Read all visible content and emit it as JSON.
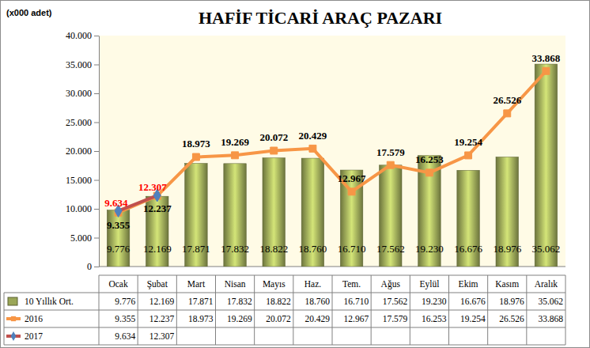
{
  "chart_data": {
    "type": "bar",
    "title": "HAFİF TİCARİ ARAÇ PAZARI",
    "y_label": "(x000 adet)",
    "categories": [
      "Ocak",
      "Şubat",
      "Mart",
      "Nisan",
      "Mayıs",
      "Haz.",
      "Tem.",
      "Ağus",
      "Eylül",
      "Ekim",
      "Kasım",
      "Aralık"
    ],
    "series": [
      {
        "name": "10 Yıllık Ort.",
        "type": "bar",
        "color": "#9aa657",
        "values": [
          9776,
          12169,
          17871,
          17832,
          18822,
          18760,
          16710,
          17562,
          19230,
          16676,
          18976,
          35062
        ],
        "value_labels": [
          "9.776",
          "12.169",
          "17.871",
          "17.832",
          "18.822",
          "18.760",
          "16.710",
          "17.562",
          "19.230",
          "16.676",
          "18.976",
          "35.062"
        ]
      },
      {
        "name": "2016",
        "type": "line",
        "color": "#f79646",
        "marker": "square",
        "values": [
          9355,
          12237,
          18973,
          19269,
          20072,
          20429,
          12967,
          17579,
          16253,
          19254,
          26526,
          33868
        ],
        "value_labels": [
          "9.355",
          "12.237",
          "18.973",
          "19.269",
          "20.072",
          "20.429",
          "12.967",
          "17.579",
          "16.253",
          "19.254",
          "26.526",
          "33.868"
        ]
      },
      {
        "name": "2017",
        "type": "line",
        "color": "#c0504d",
        "marker": "diamond",
        "values": [
          9634,
          12307,
          null,
          null,
          null,
          null,
          null,
          null,
          null,
          null,
          null,
          null
        ],
        "value_labels": [
          "9.634",
          "12.307",
          null,
          null,
          null,
          null,
          null,
          null,
          null,
          null,
          null,
          null
        ]
      }
    ],
    "ylim": [
      0,
      40000
    ],
    "yticks": [
      0,
      {
        "value": 5000,
        "label": "5.000"
      },
      {
        "value": 10000,
        "label": "10.000"
      },
      {
        "value": 15000,
        "label": "15.000"
      },
      {
        "value": 20000,
        "label": "20.000"
      },
      {
        "value": 25000,
        "label": "25.000"
      },
      {
        "value": 30000,
        "label": "30.000"
      },
      {
        "value": 35000,
        "label": "35.000"
      },
      {
        "value": 40000,
        "label": "40.000"
      }
    ],
    "grid": false,
    "data_labels": true
  }
}
